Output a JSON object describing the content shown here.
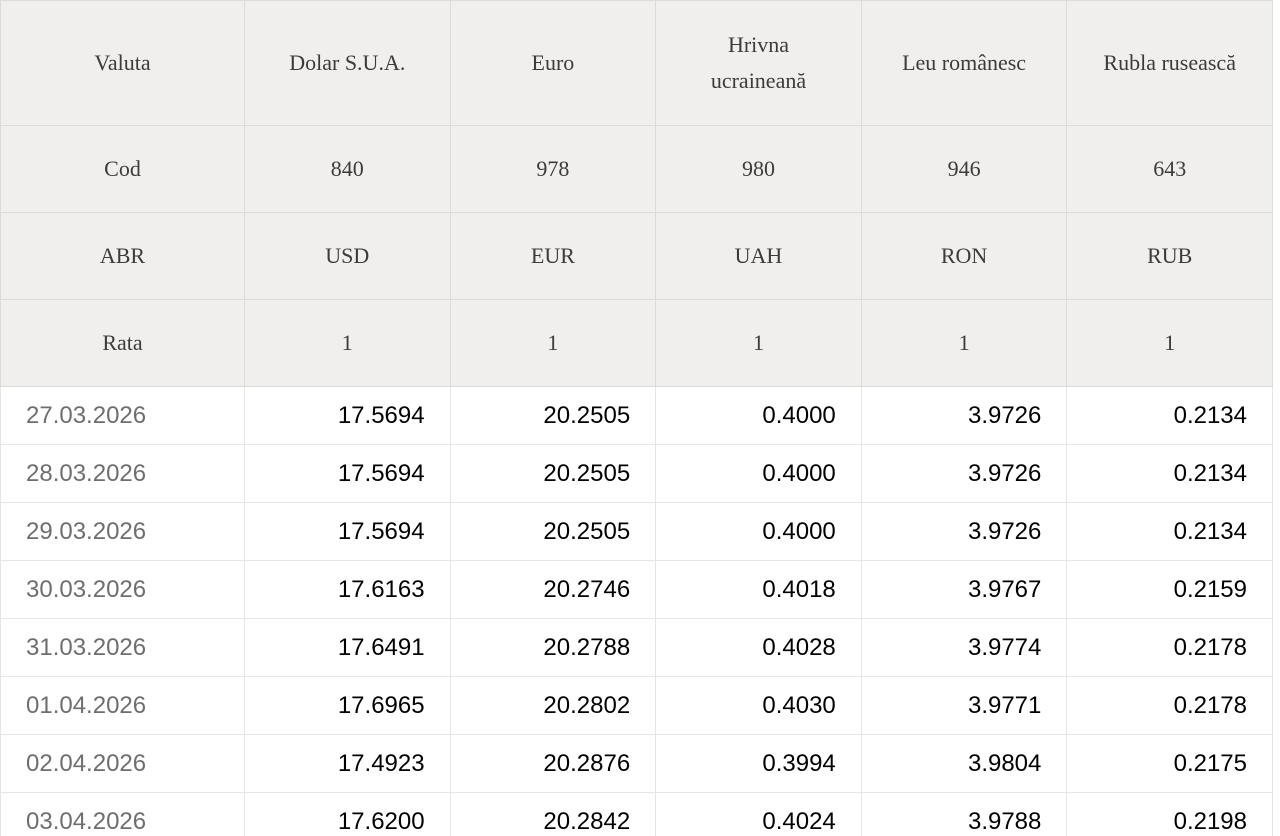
{
  "table": {
    "header_rows": [
      {
        "label": "Valuta",
        "cells": [
          "Dolar S.U.A.",
          "Euro",
          "Hrivna ucraineană",
          "Leu românesc",
          "Rubla rusească"
        ]
      },
      {
        "label": "Cod",
        "cells": [
          "840",
          "978",
          "980",
          "946",
          "643"
        ]
      },
      {
        "label": "ABR",
        "cells": [
          "USD",
          "EUR",
          "UAH",
          "RON",
          "RUB"
        ]
      },
      {
        "label": "Rata",
        "cells": [
          "1",
          "1",
          "1",
          "1",
          "1"
        ]
      }
    ],
    "data_rows": [
      {
        "date": "27.03.2026",
        "values": [
          "17.5694",
          "20.2505",
          "0.4000",
          "3.9726",
          "0.2134"
        ]
      },
      {
        "date": "28.03.2026",
        "values": [
          "17.5694",
          "20.2505",
          "0.4000",
          "3.9726",
          "0.2134"
        ]
      },
      {
        "date": "29.03.2026",
        "values": [
          "17.5694",
          "20.2505",
          "0.4000",
          "3.9726",
          "0.2134"
        ]
      },
      {
        "date": "30.03.2026",
        "values": [
          "17.6163",
          "20.2746",
          "0.4018",
          "3.9767",
          "0.2159"
        ]
      },
      {
        "date": "31.03.2026",
        "values": [
          "17.6491",
          "20.2788",
          "0.4028",
          "3.9774",
          "0.2178"
        ]
      },
      {
        "date": "01.04.2026",
        "values": [
          "17.6965",
          "20.2802",
          "0.4030",
          "3.9771",
          "0.2178"
        ]
      },
      {
        "date": "02.04.2026",
        "values": [
          "17.4923",
          "20.2876",
          "0.3994",
          "3.9804",
          "0.2175"
        ]
      },
      {
        "date": "03.04.2026",
        "values": [
          "17.6200",
          "20.2842",
          "0.4024",
          "3.9788",
          "0.2198"
        ]
      }
    ]
  },
  "colors": {
    "page_bg": "#ffffff",
    "header_bg": "#f0efed",
    "header_text": "#3e3a39",
    "header_border": "#dbdbd8",
    "data_border": "#e6e6e6",
    "date_text": "#6e6e6e",
    "value_text": "#000000",
    "footer_strip": "#f1f1ef"
  }
}
